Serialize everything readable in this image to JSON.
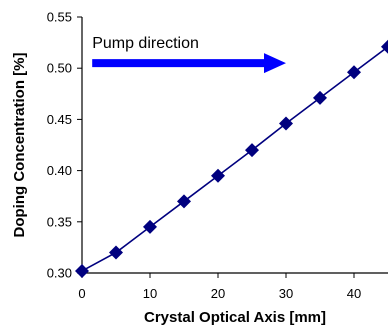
{
  "chart_data": {
    "type": "line",
    "title": "",
    "xlabel": "Crystal Optical Axis [mm]",
    "ylabel": "Doping Concentration [%]",
    "xlim": [
      0,
      45
    ],
    "ylim": [
      0.3,
      0.55
    ],
    "x_ticks": [
      "0",
      "10",
      "20",
      "30",
      "40"
    ],
    "x_tick_values": [
      0,
      10,
      20,
      30,
      40
    ],
    "y_ticks": [
      "0.30",
      "0.35",
      "0.40",
      "0.45",
      "0.50",
      "0.55"
    ],
    "y_tick_values": [
      0.3,
      0.35,
      0.4,
      0.45,
      0.5,
      0.55
    ],
    "grid": false,
    "legend": "none",
    "series": [
      {
        "marker": "diamond",
        "color": "#00007F",
        "x": [
          0,
          5,
          10,
          15,
          20,
          25,
          30,
          35,
          40,
          45
        ],
        "y": [
          0.302,
          0.32,
          0.345,
          0.37,
          0.395,
          0.42,
          0.446,
          0.471,
          0.496,
          0.521
        ]
      }
    ],
    "annotation": {
      "text": "Pump direction",
      "arrow_color": "#0000FF",
      "arrow_from": [
        1.5,
        0.505
      ],
      "arrow_to": [
        30,
        0.505
      ]
    }
  }
}
